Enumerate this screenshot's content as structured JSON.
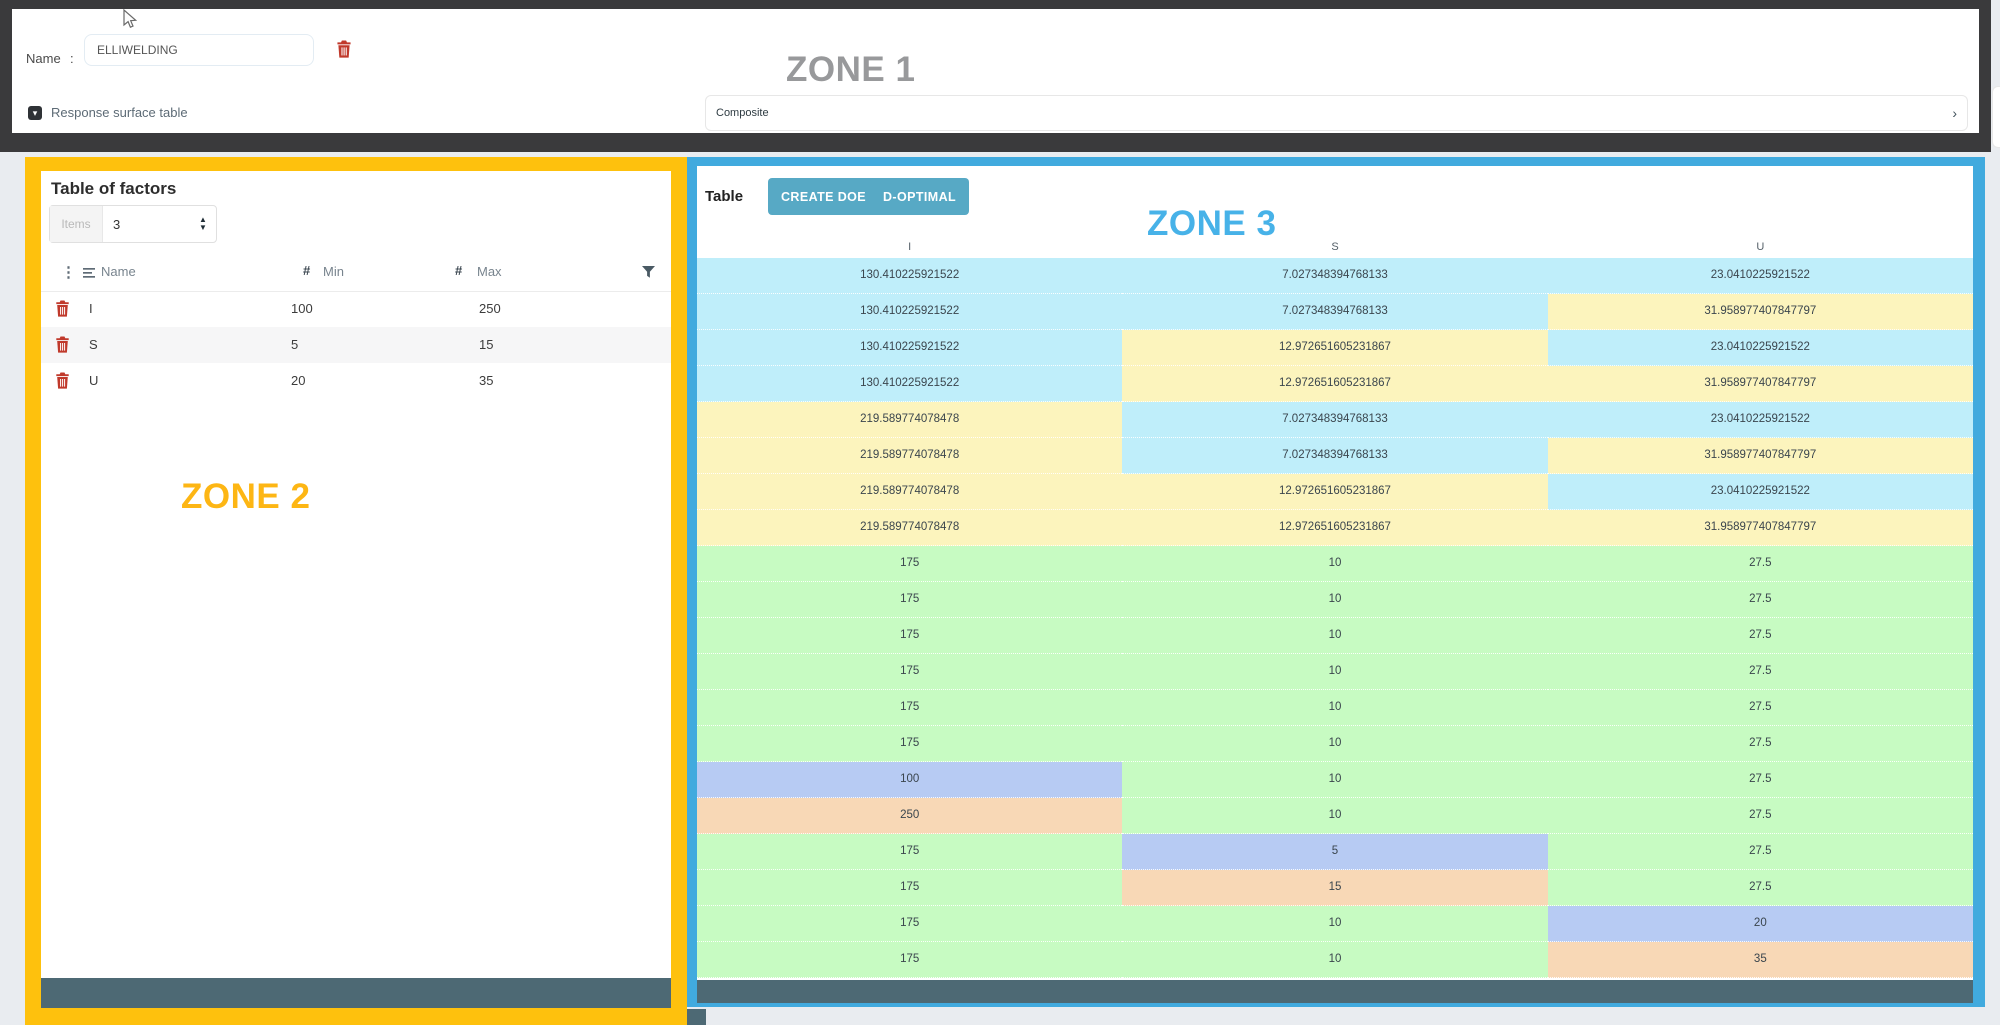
{
  "zone_labels": {
    "zone1": "ZONE 1",
    "zone2": "ZONE 2",
    "zone3": "ZONE 3"
  },
  "icons": {
    "up": "▲",
    "down": "▼",
    "chevron": "›",
    "collapse": "▾",
    "dots": "⋮"
  },
  "zone1": {
    "name_label": "Name",
    "name_separator": ":",
    "name_value": "ELLIWELDING",
    "section_toggle_label": "Response surface table",
    "design_type_value": "Composite"
  },
  "zone2": {
    "title": "Table of factors",
    "items_label": "Items",
    "items_value": "3",
    "table": {
      "hash_symbol": "#",
      "columns": {
        "name": "Name",
        "min": "Min",
        "max": "Max"
      },
      "factors": [
        {
          "name": "I",
          "min": "100",
          "max": "250"
        },
        {
          "name": "S",
          "min": "5",
          "max": "15"
        },
        {
          "name": "U",
          "min": "20",
          "max": "35"
        }
      ]
    }
  },
  "zone3": {
    "title": "Table",
    "buttons": {
      "create": "CREATE DOE",
      "doptimal": "D-OPTIMAL"
    },
    "columns": [
      "I",
      "S",
      "U"
    ],
    "cell_colors": {
      "cyan": "#bfeefa",
      "yellow": "#fcf4bd",
      "green": "#c7fbc2",
      "blue": "#b7cbf3",
      "orange": "#f8d8b6"
    },
    "rows": [
      {
        "values": [
          "130.410225921522",
          "7.027348394768133",
          "23.0410225921522"
        ],
        "colors": [
          "cyan",
          "cyan",
          "cyan"
        ]
      },
      {
        "values": [
          "130.410225921522",
          "7.027348394768133",
          "31.958977407847797"
        ],
        "colors": [
          "cyan",
          "cyan",
          "yellow"
        ]
      },
      {
        "values": [
          "130.410225921522",
          "12.972651605231867",
          "23.0410225921522"
        ],
        "colors": [
          "cyan",
          "yellow",
          "cyan"
        ]
      },
      {
        "values": [
          "130.410225921522",
          "12.972651605231867",
          "31.958977407847797"
        ],
        "colors": [
          "cyan",
          "yellow",
          "yellow"
        ]
      },
      {
        "values": [
          "219.589774078478",
          "7.027348394768133",
          "23.0410225921522"
        ],
        "colors": [
          "yellow",
          "cyan",
          "cyan"
        ]
      },
      {
        "values": [
          "219.589774078478",
          "7.027348394768133",
          "31.958977407847797"
        ],
        "colors": [
          "yellow",
          "cyan",
          "yellow"
        ]
      },
      {
        "values": [
          "219.589774078478",
          "12.972651605231867",
          "23.0410225921522"
        ],
        "colors": [
          "yellow",
          "yellow",
          "cyan"
        ]
      },
      {
        "values": [
          "219.589774078478",
          "12.972651605231867",
          "31.958977407847797"
        ],
        "colors": [
          "yellow",
          "yellow",
          "yellow"
        ]
      },
      {
        "values": [
          "175",
          "10",
          "27.5"
        ],
        "colors": [
          "green",
          "green",
          "green"
        ]
      },
      {
        "values": [
          "175",
          "10",
          "27.5"
        ],
        "colors": [
          "green",
          "green",
          "green"
        ]
      },
      {
        "values": [
          "175",
          "10",
          "27.5"
        ],
        "colors": [
          "green",
          "green",
          "green"
        ]
      },
      {
        "values": [
          "175",
          "10",
          "27.5"
        ],
        "colors": [
          "green",
          "green",
          "green"
        ]
      },
      {
        "values": [
          "175",
          "10",
          "27.5"
        ],
        "colors": [
          "green",
          "green",
          "green"
        ]
      },
      {
        "values": [
          "175",
          "10",
          "27.5"
        ],
        "colors": [
          "green",
          "green",
          "green"
        ]
      },
      {
        "values": [
          "100",
          "10",
          "27.5"
        ],
        "colors": [
          "blue",
          "green",
          "green"
        ]
      },
      {
        "values": [
          "250",
          "10",
          "27.5"
        ],
        "colors": [
          "orange",
          "green",
          "green"
        ]
      },
      {
        "values": [
          "175",
          "5",
          "27.5"
        ],
        "colors": [
          "green",
          "blue",
          "green"
        ]
      },
      {
        "values": [
          "175",
          "15",
          "27.5"
        ],
        "colors": [
          "green",
          "orange",
          "green"
        ]
      },
      {
        "values": [
          "175",
          "10",
          "20"
        ],
        "colors": [
          "green",
          "green",
          "blue"
        ]
      },
      {
        "values": [
          "175",
          "10",
          "35"
        ],
        "colors": [
          "green",
          "green",
          "orange"
        ]
      }
    ]
  }
}
